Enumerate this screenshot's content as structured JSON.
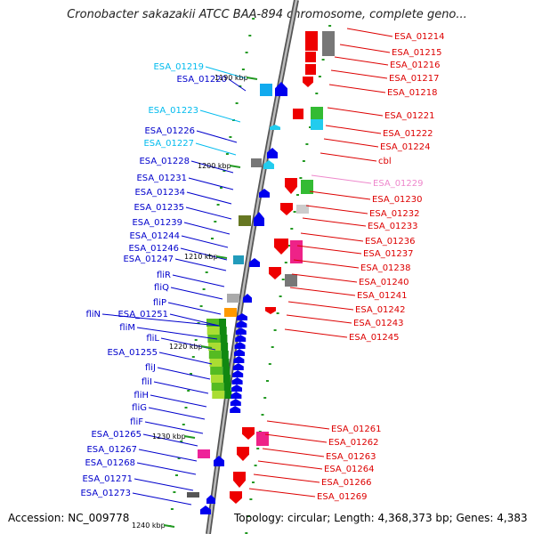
{
  "title": "Cronobacter sakazakii ATCC BAA-894 chromosome, complete geno...",
  "footer": {
    "accession": "Accession: NC_009778",
    "topology": "Topology: circular; Length: 4,368,373 bp; Genes: 4,383"
  },
  "colors": {
    "forward": "#0000ee",
    "reverse": "#ff0000",
    "pseudo_fwd": "#00bbee",
    "pseudo_rev": "#ee88cc",
    "backbone": "#888888"
  },
  "left_labels": [
    {
      "text": "ESA_01219",
      "color": "#00bbee"
    },
    {
      "text": "ESA_01220",
      "color": "#0000cc"
    },
    {
      "text": "ESA_01223",
      "color": "#00bbee"
    },
    {
      "text": "ESA_01226",
      "color": "#0000cc"
    },
    {
      "text": "ESA_01227",
      "color": "#00bbee"
    },
    {
      "text": "ESA_01228",
      "color": "#0000cc"
    },
    {
      "text": "ESA_01231",
      "color": "#0000cc"
    },
    {
      "text": "ESA_01234",
      "color": "#0000cc"
    },
    {
      "text": "ESA_01235",
      "color": "#0000cc"
    },
    {
      "text": "ESA_01239",
      "color": "#0000cc"
    },
    {
      "text": "ESA_01244",
      "color": "#0000cc"
    },
    {
      "text": "ESA_01246",
      "color": "#0000cc"
    },
    {
      "text": "ESA_01247",
      "color": "#0000cc"
    },
    {
      "text": "fliR",
      "color": "#0000cc"
    },
    {
      "text": "fliQ",
      "color": "#0000cc"
    },
    {
      "text": "fliP",
      "color": "#0000cc"
    },
    {
      "text": "fliN",
      "color": "#0000cc"
    },
    {
      "text": "ESA_01251",
      "color": "#0000cc"
    },
    {
      "text": "fliM",
      "color": "#0000cc"
    },
    {
      "text": "fliL",
      "color": "#0000cc"
    },
    {
      "text": "ESA_01255",
      "color": "#0000cc"
    },
    {
      "text": "fliJ",
      "color": "#0000cc"
    },
    {
      "text": "fliI",
      "color": "#0000cc"
    },
    {
      "text": "fliH",
      "color": "#0000cc"
    },
    {
      "text": "fliG",
      "color": "#0000cc"
    },
    {
      "text": "fliF",
      "color": "#0000cc"
    },
    {
      "text": "ESA_01265",
      "color": "#0000cc"
    },
    {
      "text": "ESA_01267",
      "color": "#0000cc"
    },
    {
      "text": "ESA_01268",
      "color": "#0000cc"
    },
    {
      "text": "ESA_01271",
      "color": "#0000cc"
    },
    {
      "text": "ESA_01273",
      "color": "#0000cc"
    }
  ],
  "right_labels": [
    {
      "text": "ESA_01214",
      "color": "#dd0000"
    },
    {
      "text": "ESA_01215",
      "color": "#dd0000"
    },
    {
      "text": "ESA_01216",
      "color": "#dd0000"
    },
    {
      "text": "ESA_01217",
      "color": "#dd0000"
    },
    {
      "text": "ESA_01218",
      "color": "#dd0000"
    },
    {
      "text": "ESA_01221",
      "color": "#dd0000"
    },
    {
      "text": "ESA_01222",
      "color": "#dd0000"
    },
    {
      "text": "ESA_01224",
      "color": "#dd0000"
    },
    {
      "text": "cbl",
      "color": "#dd0000"
    },
    {
      "text": "ESA_01229",
      "color": "#ee88cc"
    },
    {
      "text": "ESA_01230",
      "color": "#dd0000"
    },
    {
      "text": "ESA_01232",
      "color": "#dd0000"
    },
    {
      "text": "ESA_01233",
      "color": "#dd0000"
    },
    {
      "text": "ESA_01236",
      "color": "#dd0000"
    },
    {
      "text": "ESA_01237",
      "color": "#dd0000"
    },
    {
      "text": "ESA_01238",
      "color": "#dd0000"
    },
    {
      "text": "ESA_01240",
      "color": "#dd0000"
    },
    {
      "text": "ESA_01241",
      "color": "#dd0000"
    },
    {
      "text": "ESA_01242",
      "color": "#dd0000"
    },
    {
      "text": "ESA_01243",
      "color": "#dd0000"
    },
    {
      "text": "ESA_01245",
      "color": "#dd0000"
    },
    {
      "text": "ESA_01261",
      "color": "#dd0000"
    },
    {
      "text": "ESA_01262",
      "color": "#dd0000"
    },
    {
      "text": "ESA_01263",
      "color": "#dd0000"
    },
    {
      "text": "ESA_01264",
      "color": "#dd0000"
    },
    {
      "text": "ESA_01266",
      "color": "#dd0000"
    },
    {
      "text": "ESA_01269",
      "color": "#dd0000"
    }
  ],
  "kbp_marks": [
    "1190 kbp",
    "1200 kbp",
    "1210 kbp",
    "1220 kbp",
    "1230 kbp",
    "1240 kbp"
  ]
}
